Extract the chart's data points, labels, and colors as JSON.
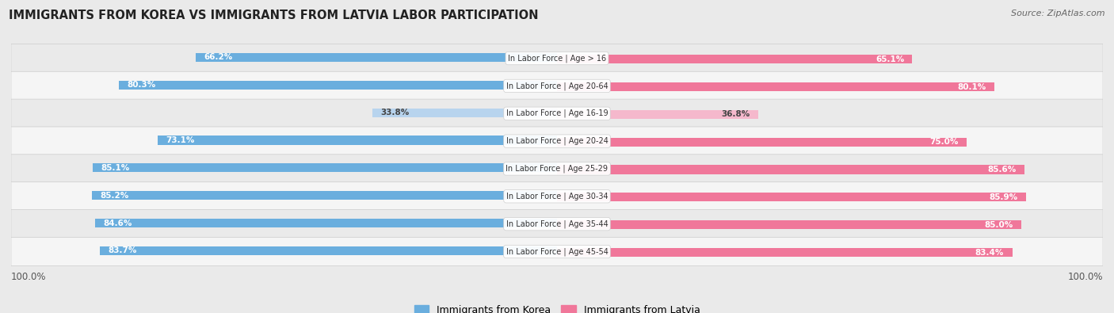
{
  "title": "IMMIGRANTS FROM KOREA VS IMMIGRANTS FROM LATVIA LABOR PARTICIPATION",
  "source": "Source: ZipAtlas.com",
  "categories": [
    "In Labor Force | Age > 16",
    "In Labor Force | Age 20-64",
    "In Labor Force | Age 16-19",
    "In Labor Force | Age 20-24",
    "In Labor Force | Age 25-29",
    "In Labor Force | Age 30-34",
    "In Labor Force | Age 35-44",
    "In Labor Force | Age 45-54"
  ],
  "korea_values": [
    66.2,
    80.3,
    33.8,
    73.1,
    85.1,
    85.2,
    84.6,
    83.7
  ],
  "latvia_values": [
    65.1,
    80.1,
    36.8,
    75.0,
    85.6,
    85.9,
    85.0,
    83.4
  ],
  "korea_color": "#6AAEDE",
  "korea_color_light": "#B8D4EE",
  "latvia_color": "#F0779A",
  "latvia_color_light": "#F5B8CC",
  "bar_height": 0.32,
  "row_bg_colors": [
    "#EAEAEA",
    "#F5F5F5"
  ],
  "background_color": "#EAEAEA",
  "legend_korea": "Immigrants from Korea",
  "legend_latvia": "Immigrants from Latvia"
}
